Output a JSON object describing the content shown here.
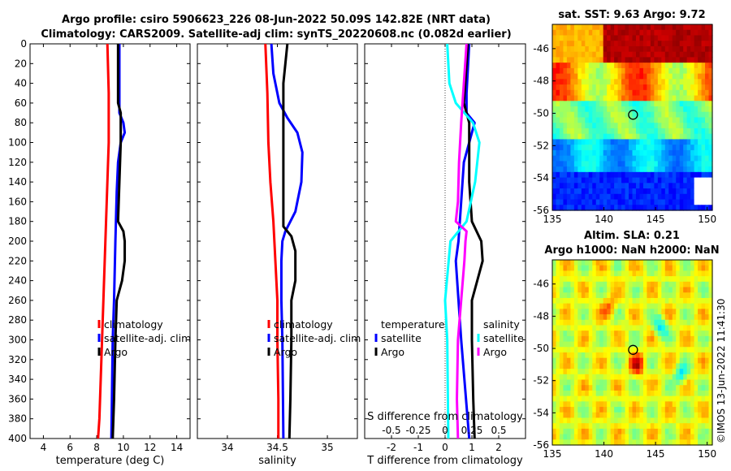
{
  "figure": {
    "title_line1": "Argo profile: csiro 5906623_226 08-Jun-2022 50.09S 142.82E (NRT data)",
    "title_line2": "Climatology: CARS2009. Satellite-adj clim: synTS_20220608.nc (0.082d earlier)",
    "credit": "©IMOS 13-Jun-2022 11:41:30"
  },
  "colors": {
    "climatology": "#ff0000",
    "satellite": "#0000ff",
    "argo": "#000000",
    "salinity_satellite": "#00ffff",
    "salinity_argo": "#ff00ff",
    "reference": "#999999"
  },
  "chart_data": [
    {
      "id": "temperature",
      "type": "line",
      "xlabel": "temperature (deg C)",
      "ylabel": "",
      "xlim": [
        3,
        15
      ],
      "ylim": [
        400,
        0
      ],
      "xticks": [
        4,
        6,
        8,
        10,
        12,
        14
      ],
      "xtick_labels": [
        "4",
        "6",
        "8",
        "10",
        "12",
        "14"
      ],
      "yticks": [
        0,
        20,
        40,
        60,
        80,
        100,
        120,
        140,
        160,
        180,
        200,
        220,
        240,
        260,
        280,
        300,
        320,
        340,
        360,
        380,
        400
      ],
      "ytick_labels": [
        "0",
        "20",
        "40",
        "60",
        "80",
        "100",
        "120",
        "140",
        "160",
        "180",
        "200",
        "220",
        "240",
        "260",
        "280",
        "300",
        "320",
        "340",
        "360",
        "380",
        "400"
      ],
      "legend": [
        "climatology",
        "satellite-adj. clim",
        "Argo"
      ],
      "series": [
        {
          "name": "climatology",
          "color": "#ff0000",
          "depth": [
            0,
            50,
            100,
            140,
            180,
            220,
            260,
            300,
            340,
            380,
            400
          ],
          "values": [
            8.8,
            8.9,
            8.9,
            8.8,
            8.7,
            8.6,
            8.5,
            8.4,
            8.3,
            8.2,
            8.1
          ]
        },
        {
          "name": "satellite-adj. clim",
          "color": "#0000ff",
          "depth": [
            0,
            50,
            70,
            80,
            90,
            100,
            120,
            150,
            200,
            260,
            300,
            400
          ],
          "values": [
            9.7,
            9.7,
            9.7,
            10.0,
            10.1,
            9.8,
            9.6,
            9.5,
            9.4,
            9.3,
            9.2,
            9.1
          ]
        },
        {
          "name": "Argo",
          "color": "#000000",
          "depth": [
            0,
            60,
            70,
            100,
            140,
            180,
            190,
            200,
            220,
            240,
            260,
            300,
            360,
            400
          ],
          "values": [
            9.6,
            9.6,
            9.8,
            9.8,
            9.7,
            9.6,
            10.0,
            10.1,
            10.1,
            9.9,
            9.5,
            9.4,
            9.3,
            9.2
          ]
        }
      ]
    },
    {
      "id": "salinity",
      "type": "line",
      "xlabel": "salinity",
      "xlim": [
        33.7,
        35.3
      ],
      "ylim": [
        400,
        0
      ],
      "xticks": [
        34,
        34.5,
        35
      ],
      "xtick_labels": [
        "34",
        "34.5",
        "35"
      ],
      "legend": [
        "climatology",
        "satellite-adj. clim",
        "Argo"
      ],
      "series": [
        {
          "name": "climatology",
          "color": "#ff0000",
          "depth": [
            0,
            50,
            100,
            140,
            180,
            220,
            260,
            300,
            360,
            400
          ],
          "values": [
            34.38,
            34.4,
            34.41,
            34.43,
            34.46,
            34.48,
            34.5,
            34.5,
            34.51,
            34.51
          ]
        },
        {
          "name": "satellite-adj. clim",
          "color": "#0000ff",
          "depth": [
            0,
            30,
            60,
            75,
            90,
            110,
            140,
            170,
            190,
            200,
            220,
            260,
            300,
            400
          ],
          "values": [
            34.44,
            34.46,
            34.52,
            34.6,
            34.7,
            34.75,
            34.74,
            34.68,
            34.58,
            34.55,
            34.54,
            34.54,
            34.55,
            34.56
          ]
        },
        {
          "name": "Argo",
          "color": "#000000",
          "depth": [
            0,
            20,
            40,
            80,
            120,
            160,
            185,
            195,
            210,
            240,
            260,
            300,
            360,
            400
          ],
          "values": [
            34.6,
            34.58,
            34.56,
            34.56,
            34.56,
            34.56,
            34.56,
            34.64,
            34.68,
            34.68,
            34.64,
            34.64,
            34.63,
            34.62
          ]
        }
      ]
    },
    {
      "id": "difference",
      "type": "line",
      "xlabel": "T difference from climatology",
      "xlabel_top": "S difference from climatology",
      "xlim": [
        -3,
        3
      ],
      "ylim": [
        400,
        0
      ],
      "xticks": [
        -2,
        -1,
        0,
        1,
        2
      ],
      "xtick_labels": [
        "-2",
        "-1",
        "0",
        "1",
        "2"
      ],
      "s_xticks": [
        -0.5,
        -0.25,
        0,
        0.25,
        0.5
      ],
      "s_xtick_labels": [
        "-0.5",
        "-0.25",
        "0",
        "0.25",
        "0.5"
      ],
      "legend_temperature_title": "temperature",
      "legend_salinity_title": "salinity",
      "legend_temperature": [
        "satellite",
        "Argo"
      ],
      "legend_salinity": [
        "satellite",
        "Argo"
      ],
      "series": [
        {
          "name": "temperature satellite",
          "color": "#0000ff",
          "depth": [
            0,
            50,
            70,
            80,
            100,
            120,
            160,
            200,
            220,
            260,
            300,
            400
          ],
          "values": [
            0.9,
            0.8,
            0.8,
            1.1,
            0.9,
            0.7,
            0.6,
            0.5,
            0.4,
            0.5,
            0.6,
            0.9
          ]
        },
        {
          "name": "temperature Argo",
          "color": "#000000",
          "depth": [
            0,
            60,
            80,
            100,
            140,
            180,
            200,
            220,
            240,
            260,
            300,
            360,
            400
          ],
          "values": [
            0.85,
            0.7,
            0.9,
            0.9,
            0.9,
            1.0,
            1.35,
            1.4,
            1.2,
            1.0,
            1.0,
            1.05,
            1.1
          ]
        },
        {
          "name": "salinity satellite",
          "color": "#00ffff",
          "depth": [
            0,
            40,
            60,
            80,
            100,
            140,
            180,
            200,
            260,
            300,
            400
          ],
          "values": [
            0.02,
            0.04,
            0.1,
            0.26,
            0.32,
            0.28,
            0.2,
            0.05,
            0.0,
            0.02,
            0.03
          ]
        },
        {
          "name": "salinity Argo",
          "color": "#ff00ff",
          "depth": [
            0,
            80,
            120,
            160,
            180,
            190,
            200,
            220,
            260,
            300,
            360,
            400
          ],
          "values": [
            0.2,
            0.15,
            0.13,
            0.12,
            0.1,
            0.2,
            0.19,
            0.18,
            0.15,
            0.12,
            0.11,
            0.12
          ]
        }
      ]
    },
    {
      "id": "sst_map",
      "type": "heatmap",
      "title": "sat. SST: 9.63 Argo: 9.72",
      "xlim": [
        135,
        150.5
      ],
      "ylim": [
        -56,
        -44.5
      ],
      "xticks": [
        135,
        140,
        145,
        150
      ],
      "xtick_labels": [
        "135",
        "140",
        "145",
        "150"
      ],
      "yticks": [
        -46,
        -48,
        -50,
        -52,
        -54,
        -56
      ],
      "ytick_labels": [
        "-46",
        "-48",
        "-50",
        "-52",
        "-54",
        "-56"
      ],
      "profile_location": [
        142.82,
        -50.09
      ]
    },
    {
      "id": "sla_map",
      "type": "heatmap",
      "title_line1": "Altim. SLA: 0.21",
      "title_line2": "Argo h1000: NaN h2000: NaN",
      "xlim": [
        135,
        150.5
      ],
      "ylim": [
        -56,
        -44.5
      ],
      "xticks": [
        135,
        140,
        145,
        150
      ],
      "xtick_labels": [
        "135",
        "140",
        "145",
        "150"
      ],
      "yticks": [
        -46,
        -48,
        -50,
        -52,
        -54,
        -56
      ],
      "ytick_labels": [
        "-46",
        "-48",
        "-50",
        "-52",
        "-54",
        "-56"
      ],
      "profile_location": [
        142.82,
        -50.09
      ]
    }
  ]
}
